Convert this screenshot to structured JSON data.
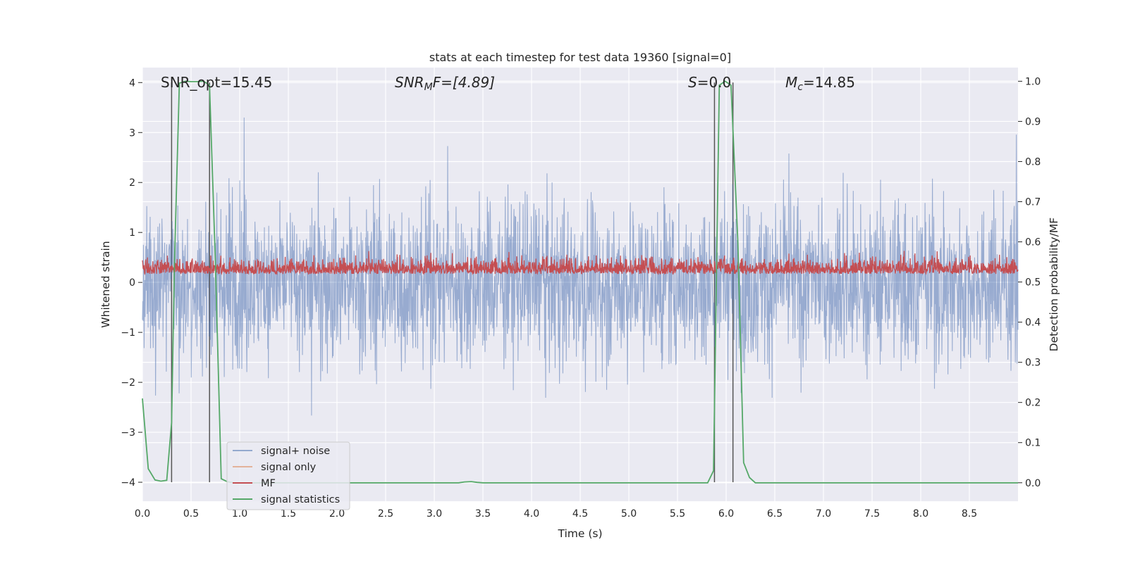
{
  "chart_data": {
    "type": "line",
    "title": "stats at each timestep for test data 19360 [signal=0]",
    "xlabel": "Time (s)",
    "ylabel_left": "Whitened strain",
    "ylabel_right": "Detection probability/MF",
    "xlim": [
      0.0,
      9.0
    ],
    "ylim_left": [
      -4.38,
      4.3
    ],
    "ylim_right": [
      -0.046,
      1.034
    ],
    "xticks": [
      "0.0",
      "0.5",
      "1.0",
      "1.5",
      "2.0",
      "2.5",
      "3.0",
      "3.5",
      "4.0",
      "4.5",
      "5.0",
      "5.5",
      "6.0",
      "6.5",
      "7.0",
      "7.5",
      "8.0",
      "8.5"
    ],
    "yticks_left": [
      "4",
      "3",
      "2",
      "1",
      "0",
      "−1",
      "−2",
      "−3",
      "−4"
    ],
    "yticks_right": [
      "1.0",
      "0.9",
      "0.8",
      "0.7",
      "0.6",
      "0.5",
      "0.4",
      "0.3",
      "0.2",
      "0.1",
      "0.0"
    ],
    "grid": true,
    "legend_position": "lower-left",
    "annotations": {
      "snr_opt": "SNR_opt=15.45",
      "snr_mf_base": "SNR",
      "snr_mf_sub": "M",
      "snr_mf_tail": "F=[4.89]",
      "s_var": "S",
      "s_tail": "=0.0",
      "mc_var": "M",
      "mc_sub": "c",
      "mc_tail": "=14.85"
    },
    "vertical_lines": [
      0.3,
      0.69,
      5.88,
      6.07
    ],
    "series": [
      {
        "name": "signal+ noise",
        "color": "#4c72b0",
        "axis": "left",
        "description_values": "dense whitened noise, roughly within [-4, 4]"
      },
      {
        "name": "signal only",
        "color": "#dd8452",
        "axis": "left",
        "values": []
      },
      {
        "name": "MF",
        "color": "#c44e52",
        "axis": "right",
        "range": [
          0.5,
          0.62
        ]
      },
      {
        "name": "signal statistics",
        "color": "#55a868",
        "axis": "right",
        "x": [
          0.0,
          0.06,
          0.13,
          0.19,
          0.25,
          0.3,
          0.33,
          0.38,
          0.44,
          0.5,
          0.56,
          0.63,
          0.69,
          0.75,
          0.81,
          0.87,
          0.94,
          1.0,
          2.0,
          3.0,
          3.25,
          3.31,
          3.38,
          3.44,
          3.5,
          4.0,
          5.0,
          5.81,
          5.87,
          5.93,
          5.99,
          6.05,
          6.12,
          6.18,
          6.24,
          6.3,
          7.0,
          8.0,
          9.0
        ],
        "y": [
          0.21,
          0.035,
          0.007,
          0.004,
          0.006,
          0.15,
          0.55,
          0.995,
          1.0,
          0.999,
          0.999,
          1.0,
          0.99,
          0.55,
          0.01,
          0.003,
          0.0,
          0.0,
          0.0,
          0.0,
          0.0,
          0.002,
          0.003,
          0.001,
          0.0,
          0.0,
          0.0,
          0.0,
          0.03,
          0.99,
          1.0,
          0.99,
          0.6,
          0.05,
          0.013,
          0.0,
          0.0,
          0.0,
          0.0
        ]
      }
    ]
  }
}
